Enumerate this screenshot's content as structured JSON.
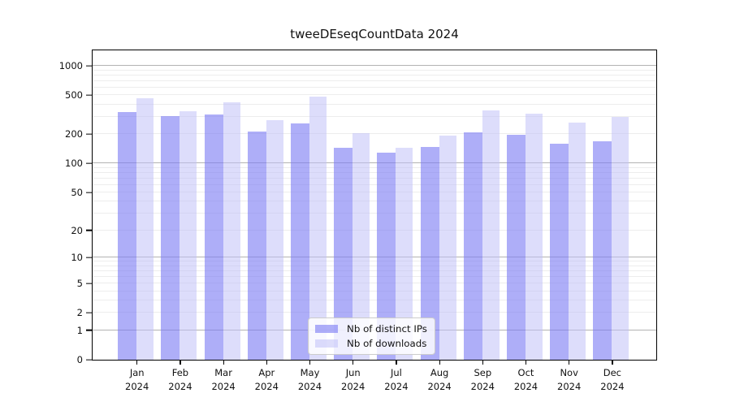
{
  "chart_data": {
    "type": "bar",
    "title": "tweeDEseqCountData 2024",
    "year_label": "2024",
    "categories": [
      "Jan",
      "Feb",
      "Mar",
      "Apr",
      "May",
      "Jun",
      "Jul",
      "Aug",
      "Sep",
      "Oct",
      "Nov",
      "Dec"
    ],
    "series": [
      {
        "name": "Nb of distinct IPs",
        "color": "rgba(124,124,244,0.62)",
        "solid_hex": "#aaaaf9",
        "values": [
          339,
          304,
          318,
          212,
          259,
          146,
          128,
          148,
          209,
          198,
          160,
          170
        ]
      },
      {
        "name": "Nb of downloads",
        "color": "rgba(190,190,248,0.52)",
        "solid_hex": "#dcdcfa",
        "values": [
          464,
          344,
          425,
          277,
          489,
          206,
          146,
          194,
          349,
          324,
          263,
          301
        ]
      }
    ],
    "xlabel": "",
    "ylabel": "",
    "yscale": "log1p",
    "yticks": [
      0,
      1,
      2,
      5,
      10,
      20,
      50,
      100,
      200,
      500,
      1000
    ],
    "ylim": [
      0,
      1440
    ],
    "grid": true,
    "minor_grid_color": "#ededed",
    "major_grid_color": "#b3b3b3",
    "legend_position": "lower center"
  }
}
